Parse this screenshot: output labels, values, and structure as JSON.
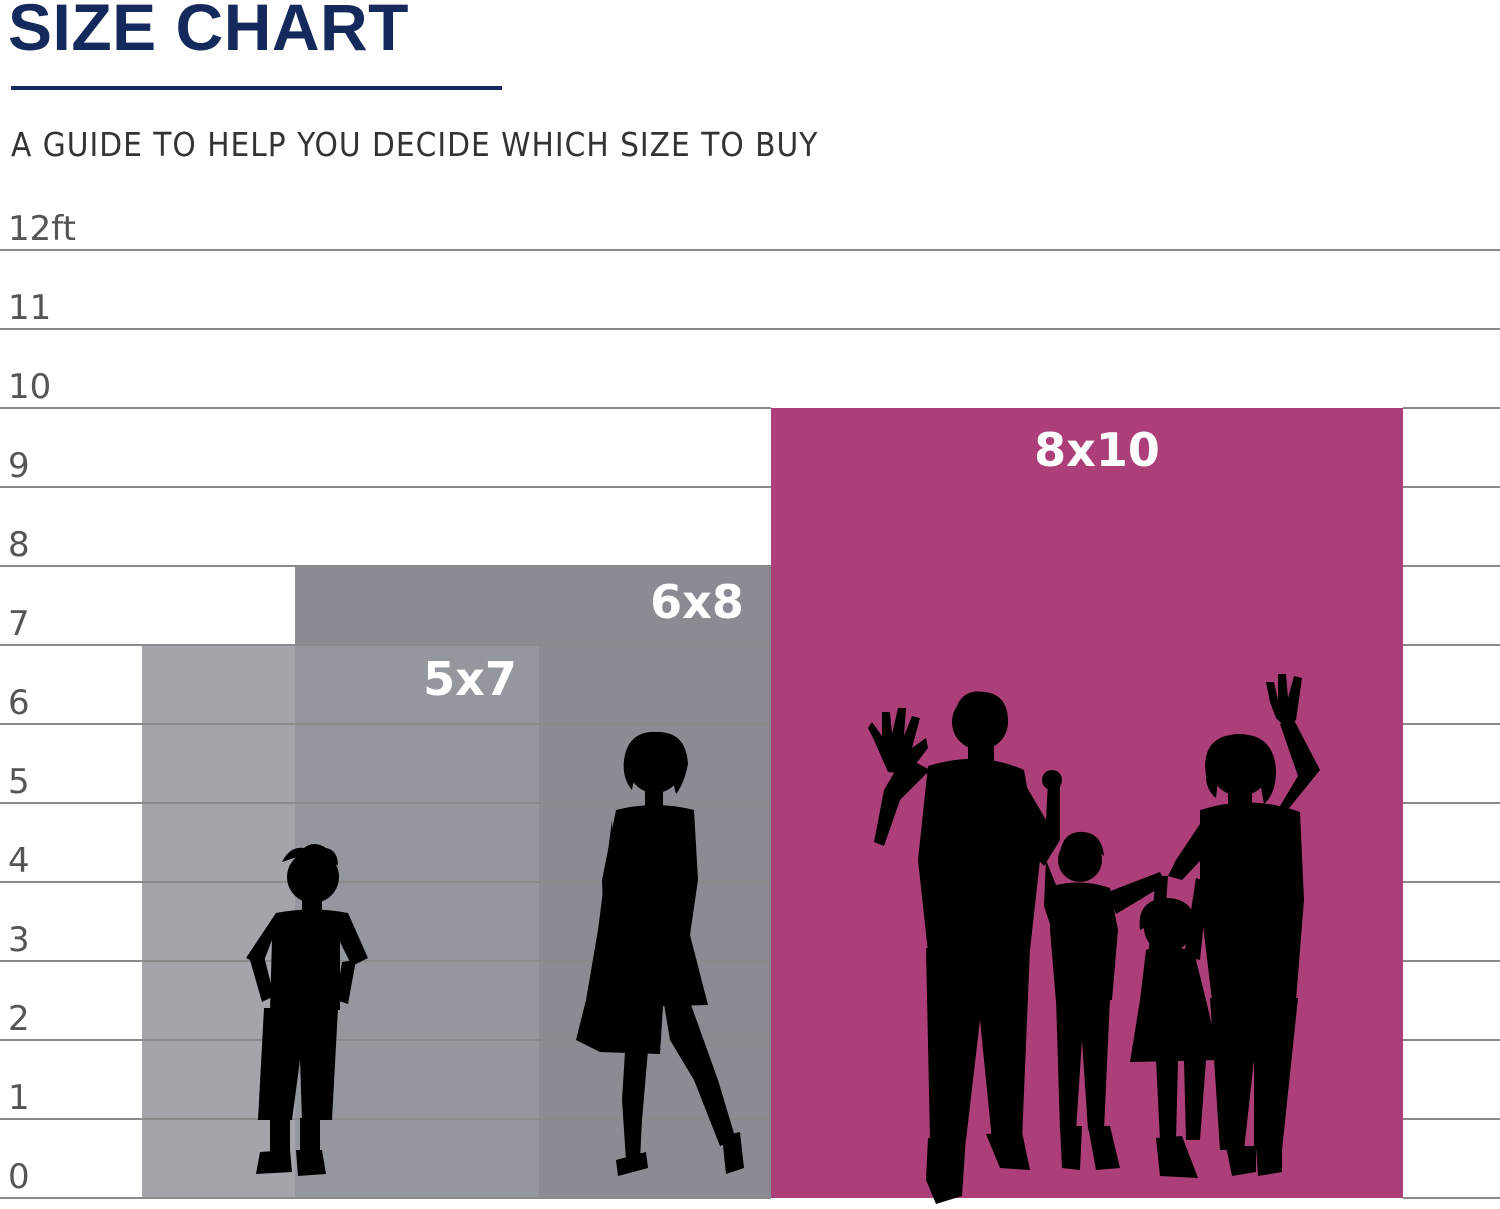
{
  "header": {
    "title": "SIZE CHART",
    "subtitle": "A GUIDE TO HELP YOU DECIDE WHICH SIZE TO BUY"
  },
  "chart_data": {
    "type": "bar",
    "title": "SIZE CHART",
    "subtitle": "A GUIDE TO HELP YOU DECIDE WHICH SIZE TO BUY",
    "unit": "ft",
    "ylim": [
      0,
      12
    ],
    "yticks": [
      "0",
      "1",
      "2",
      "3",
      "4",
      "5",
      "6",
      "7",
      "8",
      "9",
      "10",
      "11",
      "12ft"
    ],
    "grid": true,
    "bars": [
      {
        "label": "5x7",
        "width_ft": 5,
        "height_ft": 7,
        "color": "#a3a5ab"
      },
      {
        "label": "6x8",
        "width_ft": 6,
        "height_ft": 8,
        "color": "#8b8c93"
      },
      {
        "label": "8x10",
        "width_ft": 8,
        "height_ft": 10,
        "color": "#ac3f78"
      }
    ],
    "figures": [
      "child-silhouette",
      "woman-silhouette",
      "family-silhouette"
    ]
  },
  "colors": {
    "title": "#14295c",
    "grid": "#8a8a8a",
    "rug_5x7": "#a3a5ab",
    "rug_5x7_overlap": "#95979e",
    "rug_6x8": "#8b8c93",
    "rug_8x10": "#ac3f78",
    "silhouette": "#000000"
  }
}
